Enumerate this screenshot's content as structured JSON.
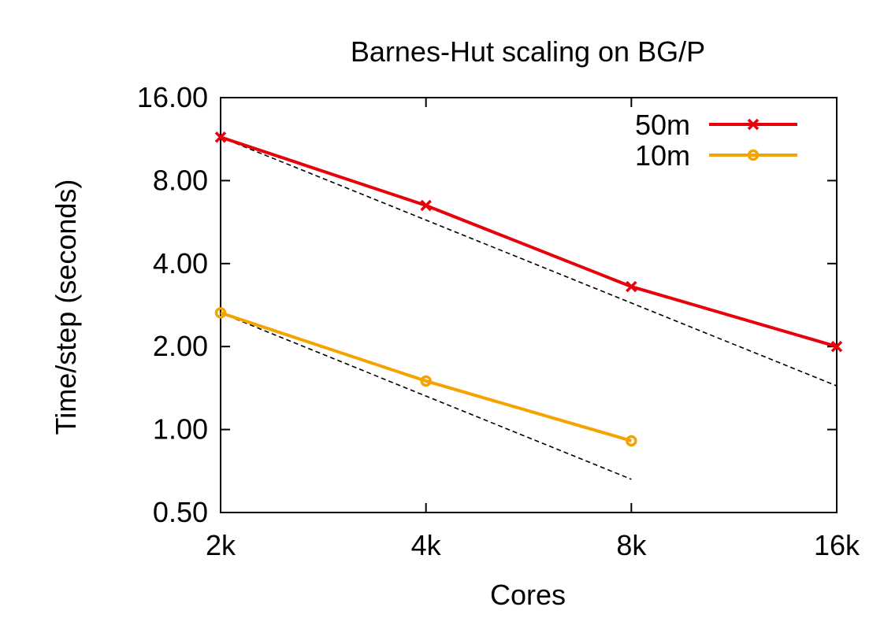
{
  "chart_data": {
    "type": "line",
    "title": "Barnes-Hut scaling on BG/P",
    "xlabel": "Cores",
    "ylabel": "Time/step (seconds)",
    "x_scale": "log2",
    "y_scale": "log2",
    "x": [
      2000,
      4000,
      8000,
      16000
    ],
    "x_tick_labels": [
      "2k",
      "4k",
      "8k",
      "16k"
    ],
    "xlim": [
      2000,
      16000
    ],
    "ylim": [
      0.5,
      16
    ],
    "y_ticks": [
      0.5,
      1,
      2,
      4,
      8,
      16
    ],
    "y_tick_labels": [
      "0.50",
      "1.00",
      "2.00",
      "4.00",
      "8.00",
      "16.00"
    ],
    "grid": false,
    "legend_position": "top-right",
    "series": [
      {
        "name": "50m",
        "color": "#e8000b",
        "marker": "x",
        "x": [
          2000,
          4000,
          8000,
          16000
        ],
        "values": [
          11.5,
          6.5,
          3.3,
          2.0
        ]
      },
      {
        "name": "10m",
        "color": "#f5a300",
        "marker": "circle",
        "x": [
          2000,
          4000,
          8000
        ],
        "values": [
          2.65,
          1.5,
          0.91
        ]
      }
    ],
    "ideal_scaling_lines": [
      {
        "series": "50m",
        "color": "#000000",
        "style": "dashed",
        "x": [
          2000,
          16000
        ],
        "values": [
          11.5,
          1.44
        ]
      },
      {
        "series": "10m",
        "color": "#000000",
        "style": "dashed",
        "x": [
          2000,
          8000
        ],
        "values": [
          2.65,
          0.66
        ]
      }
    ]
  }
}
